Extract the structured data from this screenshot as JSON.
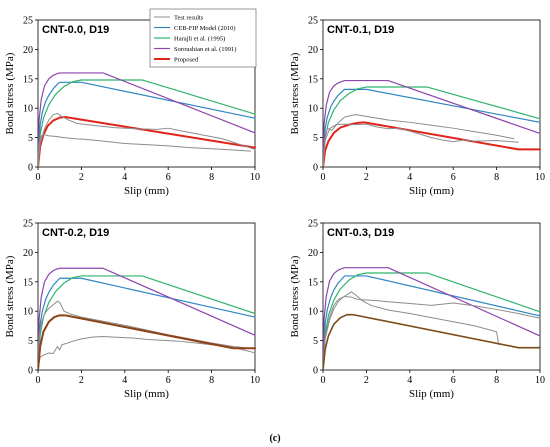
{
  "figure": {
    "caption": "(c)"
  },
  "legend": {
    "items": [
      {
        "label": "Test results",
        "color": "#8c8c8c",
        "width": 1
      },
      {
        "label": "CEB-FIP Model (2010)",
        "color": "#2e86c1",
        "width": 1.2
      },
      {
        "label": "Harajli et al. (1995)",
        "color": "#2fb36b",
        "width": 1.2
      },
      {
        "label": "Soroushian et al. (1991)",
        "color": "#8e44ad",
        "width": 1.2
      },
      {
        "label": "Proposed",
        "color": "#e0241b",
        "width": 2
      }
    ]
  },
  "chart_data": [
    {
      "type": "line",
      "title": "CNT-0.0, D19",
      "xlabel": "Slip (mm)",
      "ylabel": "Bond stress (MPa)",
      "xlim": [
        0,
        10
      ],
      "ylim": [
        0,
        25
      ],
      "xticks": [
        0,
        2,
        4,
        6,
        8,
        10
      ],
      "yticks": [
        0,
        5,
        10,
        15,
        20,
        25
      ],
      "series": [
        {
          "name": "CEB-FIP Model (2010)",
          "color": "#2e86c1",
          "width": 1.2,
          "x": [
            0,
            0.1,
            0.2,
            0.35,
            0.5,
            0.7,
            0.9,
            1.0,
            2.0,
            10
          ],
          "y": [
            0,
            7.2,
            9.3,
            11.1,
            12.2,
            13.3,
            14.1,
            14.4,
            14.4,
            8.3
          ]
        },
        {
          "name": "Harajli et al. (1995)",
          "color": "#2fb36b",
          "width": 1.2,
          "x": [
            0,
            0.1,
            0.25,
            0.5,
            0.8,
            1.2,
            1.6,
            2.0,
            4.8,
            10
          ],
          "y": [
            0,
            5.5,
            8.3,
            10.6,
            12.3,
            13.7,
            14.5,
            14.8,
            14.8,
            9.0
          ]
        },
        {
          "name": "Soroushian et al. (1991)",
          "color": "#8e44ad",
          "width": 1.2,
          "x": [
            0,
            0.05,
            0.15,
            0.3,
            0.5,
            0.7,
            0.9,
            1.0,
            3.0,
            10
          ],
          "y": [
            0,
            8.0,
            11.5,
            13.8,
            15.0,
            15.6,
            15.9,
            16.0,
            16.0,
            5.8
          ]
        },
        {
          "name": "Proposed",
          "color": "#e0241b",
          "width": 2,
          "x": [
            0,
            0.1,
            0.25,
            0.45,
            0.7,
            1.0,
            1.25,
            10
          ],
          "y": [
            0,
            3.5,
            5.5,
            7.0,
            7.9,
            8.4,
            8.5,
            3.3
          ]
        },
        {
          "name": "Test results",
          "color": "#8c8c8c",
          "width": 1,
          "x": [
            0,
            0.05,
            0.15,
            0.3,
            0.5,
            0.8,
            1.2,
            1.7,
            2.2,
            3.0,
            4.0,
            5.0,
            6.0,
            7.0,
            8.0,
            9.0,
            9.8
          ],
          "y": [
            0,
            4.0,
            5.3,
            5.5,
            5.3,
            5.2,
            5.0,
            4.8,
            4.7,
            4.4,
            4.0,
            3.8,
            3.6,
            3.3,
            3.1,
            2.9,
            2.7
          ]
        },
        {
          "name": "Test results",
          "color": "#8c8c8c",
          "width": 1,
          "x": [
            0,
            0.1,
            0.3,
            0.5,
            0.7,
            0.9,
            1.1,
            1.4,
            1.8,
            2.5,
            3.5,
            4.5,
            5.5,
            6.0,
            6.5,
            7.5,
            8.5,
            9.5,
            10
          ],
          "y": [
            0,
            4.0,
            6.5,
            8.0,
            8.9,
            9.1,
            8.6,
            8.0,
            7.4,
            7.1,
            6.7,
            6.5,
            6.4,
            6.6,
            6.2,
            5.5,
            4.8,
            3.6,
            3.0
          ]
        }
      ]
    },
    {
      "type": "line",
      "title": "CNT-0.1, D19",
      "xlabel": "Slip (mm)",
      "ylabel": "Bond stress (MPa)",
      "xlim": [
        0,
        10
      ],
      "ylim": [
        0,
        25
      ],
      "xticks": [
        0,
        2,
        4,
        6,
        8,
        10
      ],
      "yticks": [
        0,
        5,
        10,
        15,
        20,
        25
      ],
      "series": [
        {
          "name": "CEB-FIP Model (2010)",
          "color": "#2e86c1",
          "width": 1.2,
          "x": [
            0,
            0.1,
            0.2,
            0.35,
            0.5,
            0.7,
            0.9,
            1.0,
            2.0,
            10
          ],
          "y": [
            0,
            6.6,
            8.5,
            10.2,
            11.2,
            12.2,
            12.9,
            13.2,
            13.2,
            7.6
          ]
        },
        {
          "name": "Harajli et al. (1995)",
          "color": "#2fb36b",
          "width": 1.2,
          "x": [
            0,
            0.1,
            0.25,
            0.5,
            0.8,
            1.2,
            1.6,
            2.0,
            4.8,
            10
          ],
          "y": [
            0,
            5.0,
            7.6,
            9.7,
            11.3,
            12.5,
            13.3,
            13.6,
            13.6,
            8.2
          ]
        },
        {
          "name": "Soroushian et al. (1991)",
          "color": "#8e44ad",
          "width": 1.2,
          "x": [
            0,
            0.05,
            0.15,
            0.3,
            0.5,
            0.7,
            0.9,
            1.0,
            3.0,
            10
          ],
          "y": [
            0,
            7.3,
            10.5,
            12.7,
            13.8,
            14.3,
            14.6,
            14.7,
            14.7,
            5.7
          ]
        },
        {
          "name": "Proposed",
          "color": "#e0241b",
          "width": 2,
          "x": [
            0,
            0.1,
            0.25,
            0.5,
            0.8,
            1.2,
            1.6,
            1.9,
            9.0,
            10
          ],
          "y": [
            0,
            2.8,
            4.4,
            5.8,
            6.7,
            7.2,
            7.5,
            7.6,
            3.0,
            3.0
          ]
        },
        {
          "name": "Test results",
          "color": "#8c8c8c",
          "width": 1,
          "x": [
            0,
            0.1,
            0.2,
            0.4,
            0.7,
            1.0,
            1.5,
            2.0,
            2.5,
            3.0,
            4.0,
            5.0,
            6.0,
            7.0,
            8.0,
            8.8
          ],
          "y": [
            0,
            5.0,
            6.6,
            6.2,
            7.5,
            8.5,
            8.9,
            8.6,
            8.3,
            8.0,
            7.6,
            7.1,
            6.6,
            6.0,
            5.4,
            4.8
          ]
        },
        {
          "name": "Test results",
          "color": "#8c8c8c",
          "width": 1,
          "x": [
            0,
            0.1,
            0.3,
            0.6,
            1.0,
            1.5,
            2.0,
            2.5,
            3.0,
            3.5,
            4.0,
            5.0,
            5.5,
            6.0,
            6.5,
            7.0,
            8.0,
            9.0
          ],
          "y": [
            0,
            4.5,
            6.5,
            7.2,
            7.3,
            7.2,
            7.3,
            6.8,
            6.5,
            6.6,
            6.1,
            5.0,
            4.6,
            4.3,
            4.6,
            4.4,
            4.5,
            4.2
          ]
        }
      ]
    },
    {
      "type": "line",
      "title": "CNT-0.2, D19",
      "xlabel": "Slip (mm)",
      "ylabel": "Bond stress (MPa)",
      "xlim": [
        0,
        10
      ],
      "ylim": [
        0,
        25
      ],
      "xticks": [
        0,
        2,
        4,
        6,
        8,
        10
      ],
      "yticks": [
        0,
        5,
        10,
        15,
        20,
        25
      ],
      "series": [
        {
          "name": "CEB-FIP Model (2010)",
          "color": "#2e86c1",
          "width": 1.2,
          "x": [
            0,
            0.1,
            0.2,
            0.35,
            0.5,
            0.7,
            0.9,
            1.0,
            2.0,
            10
          ],
          "y": [
            0,
            7.8,
            10.0,
            12.0,
            13.2,
            14.4,
            15.2,
            15.6,
            15.6,
            9.0
          ]
        },
        {
          "name": "Harajli et al. (1995)",
          "color": "#2fb36b",
          "width": 1.2,
          "x": [
            0,
            0.1,
            0.25,
            0.5,
            0.8,
            1.2,
            1.6,
            2.0,
            4.8,
            10
          ],
          "y": [
            0,
            5.9,
            9.0,
            11.5,
            13.3,
            14.8,
            15.7,
            16.0,
            16.0,
            9.6
          ]
        },
        {
          "name": "Soroushian et al. (1991)",
          "color": "#8e44ad",
          "width": 1.2,
          "x": [
            0,
            0.05,
            0.15,
            0.3,
            0.5,
            0.7,
            0.9,
            1.0,
            3.0,
            10
          ],
          "y": [
            0,
            8.6,
            12.4,
            15.0,
            16.3,
            16.9,
            17.2,
            17.3,
            17.3,
            5.9
          ]
        },
        {
          "name": "Test results",
          "color": "#8c8c8c",
          "width": 1,
          "x": [
            0,
            0.05,
            0.15,
            0.3,
            0.5,
            0.7,
            0.9,
            1.0,
            1.2,
            1.5,
            2.0,
            3.0,
            4.0,
            5.0,
            6.0,
            7.0,
            8.0,
            9.0,
            10
          ],
          "y": [
            0,
            5.5,
            8.0,
            9.5,
            10.5,
            11.1,
            11.7,
            11.5,
            10.0,
            9.5,
            9.0,
            8.3,
            7.6,
            6.8,
            6.0,
            5.3,
            4.6,
            4.0,
            3.6
          ]
        },
        {
          "name": "Test results",
          "color": "#8c8c8c",
          "width": 1,
          "x": [
            0,
            0.1,
            0.3,
            0.5,
            0.7,
            0.9,
            1.0,
            1.1,
            1.3,
            1.6,
            2.0,
            2.5,
            3.0,
            3.5,
            4.0,
            4.5,
            5.0,
            5.5,
            6.0,
            6.5,
            7.0,
            7.5,
            8.0,
            8.5,
            9.0,
            9.5,
            10
          ],
          "y": [
            0,
            2.2,
            2.6,
            2.9,
            2.8,
            4.0,
            3.4,
            4.3,
            4.5,
            4.9,
            5.3,
            5.6,
            5.7,
            5.6,
            5.5,
            5.4,
            5.2,
            5.1,
            5.0,
            4.9,
            4.7,
            4.5,
            4.3,
            4.1,
            3.8,
            3.4,
            2.9
          ]
        },
        {
          "name": "Proposed",
          "color": "#e0241b",
          "width": 2,
          "x": [
            0,
            0.1,
            0.25,
            0.5,
            0.75,
            1.0,
            1.25,
            9.0,
            10
          ],
          "y": [
            0,
            4.0,
            6.5,
            8.2,
            9.0,
            9.3,
            9.3,
            3.7,
            3.7
          ]
        },
        {
          "name": "Proposed",
          "color": "#7a4a18",
          "width": 1.6,
          "x": [
            0,
            0.1,
            0.25,
            0.5,
            0.75,
            1.0,
            1.25,
            9.0,
            10
          ],
          "y": [
            0,
            4.0,
            6.5,
            8.2,
            9.0,
            9.3,
            9.3,
            3.7,
            3.7
          ]
        }
      ]
    },
    {
      "type": "line",
      "title": "CNT-0.3, D19",
      "xlabel": "Slip (mm)",
      "ylabel": "Bond stress (MPa)",
      "xlim": [
        0,
        10
      ],
      "ylim": [
        0,
        25
      ],
      "xticks": [
        0,
        2,
        4,
        6,
        8,
        10
      ],
      "yticks": [
        0,
        5,
        10,
        15,
        20,
        25
      ],
      "series": [
        {
          "name": "CEB-FIP Model (2010)",
          "color": "#2e86c1",
          "width": 1.2,
          "x": [
            0,
            0.1,
            0.2,
            0.35,
            0.5,
            0.7,
            0.9,
            1.0,
            2.0,
            10
          ],
          "y": [
            0,
            8.0,
            10.3,
            12.3,
            13.6,
            14.8,
            15.6,
            16.0,
            16.0,
            9.2
          ]
        },
        {
          "name": "Harajli et al. (1995)",
          "color": "#2fb36b",
          "width": 1.2,
          "x": [
            0,
            0.1,
            0.25,
            0.5,
            0.8,
            1.2,
            1.6,
            2.0,
            4.8,
            10
          ],
          "y": [
            0,
            6.1,
            9.3,
            11.9,
            13.8,
            15.3,
            16.2,
            16.5,
            16.5,
            9.9
          ]
        },
        {
          "name": "Soroushian et al. (1991)",
          "color": "#8e44ad",
          "width": 1.2,
          "x": [
            0,
            0.05,
            0.15,
            0.3,
            0.5,
            0.7,
            0.9,
            1.0,
            3.0,
            10
          ],
          "y": [
            0,
            8.7,
            12.5,
            15.1,
            16.4,
            17.0,
            17.3,
            17.4,
            17.4,
            5.8
          ]
        },
        {
          "name": "Test results",
          "color": "#8c8c8c",
          "width": 1,
          "x": [
            0,
            0.1,
            0.3,
            0.5,
            0.7,
            0.9,
            1.1,
            1.3,
            1.5,
            1.8,
            2.2,
            3.0,
            4.0,
            5.0,
            6.0,
            7.0,
            8.0,
            8.1
          ],
          "y": [
            0,
            5.2,
            8.5,
            10.4,
            11.6,
            12.3,
            12.8,
            13.3,
            12.8,
            11.8,
            11.0,
            10.2,
            9.6,
            8.9,
            8.2,
            7.5,
            6.5,
            4.3
          ]
        },
        {
          "name": "Test results",
          "color": "#8c8c8c",
          "width": 1,
          "x": [
            0,
            0.1,
            0.3,
            0.5,
            0.7,
            1.0,
            1.3,
            1.6,
            2.0,
            2.5,
            3.0,
            4.0,
            5.0,
            6.0,
            7.0,
            8.0,
            9.0,
            10
          ],
          "y": [
            0,
            5.5,
            9.0,
            11.0,
            12.0,
            12.5,
            12.4,
            12.0,
            11.9,
            11.8,
            11.6,
            11.3,
            11.0,
            11.4,
            10.9,
            10.3,
            9.6,
            8.8
          ]
        },
        {
          "name": "Proposed",
          "color": "#7a4a18",
          "width": 1.6,
          "x": [
            0,
            0.1,
            0.25,
            0.5,
            0.8,
            1.1,
            1.4,
            9.0,
            10
          ],
          "y": [
            0,
            3.5,
            5.8,
            7.8,
            8.9,
            9.4,
            9.4,
            3.8,
            3.8
          ]
        }
      ]
    }
  ]
}
